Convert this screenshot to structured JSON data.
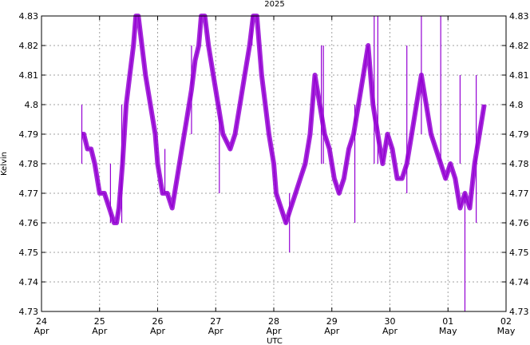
{
  "chart_data": {
    "type": "line",
    "title": "2025",
    "xlabel": "UTC",
    "ylabel": "Kelvin",
    "grid": true,
    "legend": "none",
    "ylim": [
      4.73,
      4.83
    ],
    "xlim": [
      "2025-04-24T00:00",
      "2025-05-02T00:00"
    ],
    "x_ticks": [
      {
        "day": "24",
        "month": "Apr",
        "t": "2025-04-24T00:00"
      },
      {
        "day": "25",
        "month": "Apr",
        "t": "2025-04-25T00:00"
      },
      {
        "day": "26",
        "month": "Apr",
        "t": "2025-04-26T00:00"
      },
      {
        "day": "27",
        "month": "Apr",
        "t": "2025-04-27T00:00"
      },
      {
        "day": "28",
        "month": "Apr",
        "t": "2025-04-28T00:00"
      },
      {
        "day": "29",
        "month": "Apr",
        "t": "2025-04-29T00:00"
      },
      {
        "day": "30",
        "month": "Apr",
        "t": "2025-04-30T00:00"
      },
      {
        "day": "01",
        "month": "May",
        "t": "2025-05-01T00:00"
      },
      {
        "day": "02",
        "month": "May",
        "t": "2025-05-02T00:00"
      }
    ],
    "y_ticks": [
      "4.73",
      "4.74",
      "4.75",
      "4.76",
      "4.77",
      "4.78",
      "4.79",
      "4.8",
      "4.81",
      "4.82",
      "4.83"
    ],
    "series": [
      {
        "color": "#9400d3",
        "x": [
          "2025-04-24T16:30",
          "2025-04-24T17:30",
          "2025-04-24T19:00",
          "2025-04-24T20:30",
          "2025-04-24T22:00",
          "2025-04-25T00:00",
          "2025-04-25T02:00",
          "2025-04-25T04:00",
          "2025-04-25T06:00",
          "2025-04-25T07:00",
          "2025-04-25T08:00",
          "2025-04-25T09:30",
          "2025-04-25T11:00",
          "2025-04-25T12:30",
          "2025-04-25T14:00",
          "2025-04-25T15:00",
          "2025-04-25T16:00",
          "2025-04-25T17:30",
          "2025-04-25T19:00",
          "2025-04-25T21:00",
          "2025-04-25T23:00",
          "2025-04-26T00:00",
          "2025-04-26T02:00",
          "2025-04-26T04:00",
          "2025-04-26T06:00",
          "2025-04-26T08:00",
          "2025-04-26T10:00",
          "2025-04-26T12:00",
          "2025-04-26T14:00",
          "2025-04-26T15:30",
          "2025-04-26T17:00",
          "2025-04-26T18:00",
          "2025-04-26T19:30",
          "2025-04-26T21:00",
          "2025-04-26T23:00",
          "2025-04-27T01:00",
          "2025-04-27T03:00",
          "2025-04-27T06:00",
          "2025-04-27T08:00",
          "2025-04-27T10:00",
          "2025-04-27T12:00",
          "2025-04-27T14:00",
          "2025-04-27T15:30",
          "2025-04-27T17:00",
          "2025-04-27T18:00",
          "2025-04-27T19:00",
          "2025-04-27T20:30",
          "2025-04-27T22:00",
          "2025-04-28T00:00",
          "2025-04-28T01:00",
          "2025-04-28T03:00",
          "2025-04-28T05:00",
          "2025-04-28T07:00",
          "2025-04-28T09:00",
          "2025-04-28T11:00",
          "2025-04-28T13:00",
          "2025-04-28T15:00",
          "2025-04-28T17:00",
          "2025-04-28T19:00",
          "2025-04-28T21:00",
          "2025-04-28T23:00",
          "2025-04-29T01:00",
          "2025-04-29T03:00",
          "2025-04-29T05:00",
          "2025-04-29T07:00",
          "2025-04-29T09:00",
          "2025-04-29T11:00",
          "2025-04-29T13:00",
          "2025-04-29T15:00",
          "2025-04-29T17:00",
          "2025-04-29T19:00",
          "2025-04-29T21:00",
          "2025-04-29T23:00",
          "2025-04-30T01:00",
          "2025-04-30T03:00",
          "2025-04-30T05:00",
          "2025-04-30T07:00",
          "2025-04-30T09:00",
          "2025-04-30T11:00",
          "2025-04-30T13:00",
          "2025-04-30T15:00",
          "2025-04-30T17:00",
          "2025-04-30T19:00",
          "2025-04-30T21:00",
          "2025-04-30T23:00",
          "2025-05-01T01:00",
          "2025-05-01T03:00",
          "2025-05-01T05:00",
          "2025-05-01T07:00",
          "2025-05-01T09:00",
          "2025-05-01T11:00",
          "2025-05-01T13:00",
          "2025-05-01T15:00"
        ],
        "y": [
          4.79,
          4.79,
          4.785,
          4.785,
          4.78,
          4.77,
          4.77,
          4.765,
          4.76,
          4.76,
          4.765,
          4.78,
          4.8,
          4.81,
          4.82,
          4.83,
          4.83,
          4.82,
          4.81,
          4.8,
          4.79,
          4.78,
          4.77,
          4.77,
          4.765,
          4.775,
          4.785,
          4.795,
          4.805,
          4.815,
          4.82,
          4.83,
          4.83,
          4.82,
          4.81,
          4.8,
          4.79,
          4.785,
          4.79,
          4.8,
          4.81,
          4.82,
          4.83,
          4.83,
          4.82,
          4.81,
          4.8,
          4.79,
          4.78,
          4.77,
          4.765,
          4.76,
          4.765,
          4.77,
          4.775,
          4.78,
          4.79,
          4.81,
          4.8,
          4.79,
          4.785,
          4.775,
          4.77,
          4.775,
          4.785,
          4.79,
          4.8,
          4.81,
          4.82,
          4.8,
          4.79,
          4.78,
          4.79,
          4.785,
          4.775,
          4.775,
          4.78,
          4.79,
          4.8,
          4.81,
          4.8,
          4.79,
          4.785,
          4.78,
          4.775,
          4.78,
          4.775,
          4.765,
          4.77,
          4.765,
          4.78,
          4.79,
          4.8
        ]
      }
    ],
    "spikes": [
      {
        "x": "2025-04-24T16:40",
        "lo": 4.78,
        "hi": 4.8
      },
      {
        "x": "2025-04-25T04:30",
        "lo": 4.76,
        "hi": 4.78
      },
      {
        "x": "2025-04-25T09:10",
        "lo": 4.76,
        "hi": 4.8
      },
      {
        "x": "2025-04-26T03:00",
        "lo": 4.77,
        "hi": 4.785
      },
      {
        "x": "2025-04-26T14:00",
        "lo": 4.79,
        "hi": 4.82
      },
      {
        "x": "2025-04-27T01:30",
        "lo": 4.77,
        "hi": 4.8
      },
      {
        "x": "2025-04-27T15:00",
        "lo": 4.82,
        "hi": 4.83
      },
      {
        "x": "2025-04-28T06:30",
        "lo": 4.75,
        "hi": 4.77
      },
      {
        "x": "2025-04-28T19:40",
        "lo": 4.78,
        "hi": 4.82
      },
      {
        "x": "2025-04-28T20:30",
        "lo": 4.78,
        "hi": 4.82
      },
      {
        "x": "2025-04-29T09:30",
        "lo": 4.76,
        "hi": 4.8
      },
      {
        "x": "2025-04-29T17:30",
        "lo": 4.78,
        "hi": 4.83
      },
      {
        "x": "2025-04-29T19:00",
        "lo": 4.78,
        "hi": 4.83
      },
      {
        "x": "2025-04-30T07:00",
        "lo": 4.77,
        "hi": 4.82
      },
      {
        "x": "2025-04-30T13:00",
        "lo": 4.79,
        "hi": 4.83
      },
      {
        "x": "2025-04-30T21:00",
        "lo": 4.78,
        "hi": 4.83
      },
      {
        "x": "2025-05-01T05:00",
        "lo": 4.78,
        "hi": 4.81
      },
      {
        "x": "2025-05-01T11:40",
        "lo": 4.76,
        "hi": 4.81
      },
      {
        "x": "2025-05-01T07:00",
        "lo": 4.73,
        "hi": 4.77
      }
    ]
  }
}
